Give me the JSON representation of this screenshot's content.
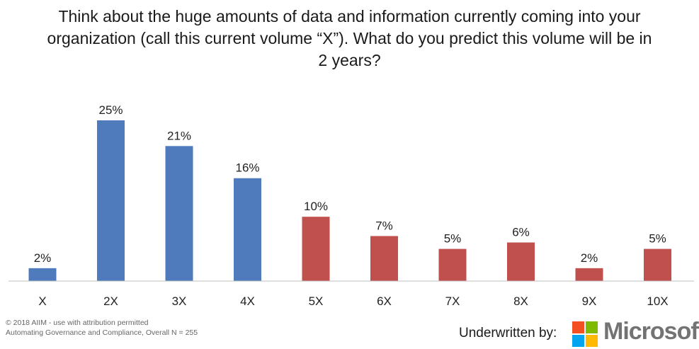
{
  "title": "Think about the huge amounts of data and information currently coming into your organization (call this current volume “X”). What do you predict this volume will be in 2 years?",
  "chart_data": {
    "type": "bar",
    "categories": [
      "X",
      "2X",
      "3X",
      "4X",
      "5X",
      "6X",
      "7X",
      "8X",
      "9X",
      "10X"
    ],
    "values": [
      2,
      25,
      21,
      16,
      10,
      7,
      5,
      6,
      2,
      5
    ],
    "value_labels": [
      "2%",
      "25%",
      "21%",
      "16%",
      "10%",
      "7%",
      "5%",
      "6%",
      "2%",
      "5%"
    ],
    "bar_colors": [
      "#4f7bbd",
      "#4f7bbd",
      "#4f7bbd",
      "#4f7bbd",
      "#c0504d",
      "#c0504d",
      "#c0504d",
      "#c0504d",
      "#c0504d",
      "#c0504d"
    ],
    "ylim": [
      0,
      25
    ],
    "grid": false,
    "legend": "none"
  },
  "footer": {
    "copyright": "© 2018 AIIM - use with attribution permitted",
    "source": "Automating Governance and Compliance, Overall N = 255"
  },
  "sponsor": {
    "label": "Underwritten by:",
    "wordmark": "Microsoft",
    "logo_colors": [
      "#f25022",
      "#7fba00",
      "#00a4ef",
      "#ffb900"
    ]
  }
}
